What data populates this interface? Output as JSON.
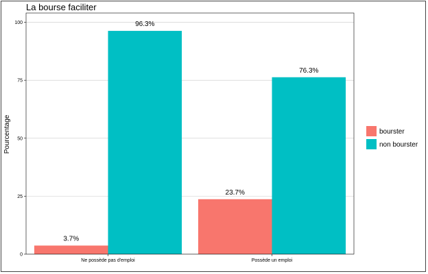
{
  "chart_data": {
    "type": "bar",
    "title": "La bourse faciliter",
    "xlabel": "",
    "ylabel": "Pourcentage",
    "ylim": [
      0,
      104
    ],
    "yticks": [
      0,
      25,
      50,
      75,
      100
    ],
    "categories": [
      "Ne possède pas d'emploi",
      "Possède un emploi"
    ],
    "series": [
      {
        "name": "bourster",
        "color": "#F8766D",
        "values": [
          3.7,
          23.7
        ],
        "labels": [
          "3.7%",
          "23.7%"
        ]
      },
      {
        "name": "non bourster",
        "color": "#00BFC4",
        "values": [
          96.3,
          76.3
        ],
        "labels": [
          "96.3%",
          "76.3%"
        ]
      }
    ],
    "grid": true,
    "legend": "right"
  }
}
